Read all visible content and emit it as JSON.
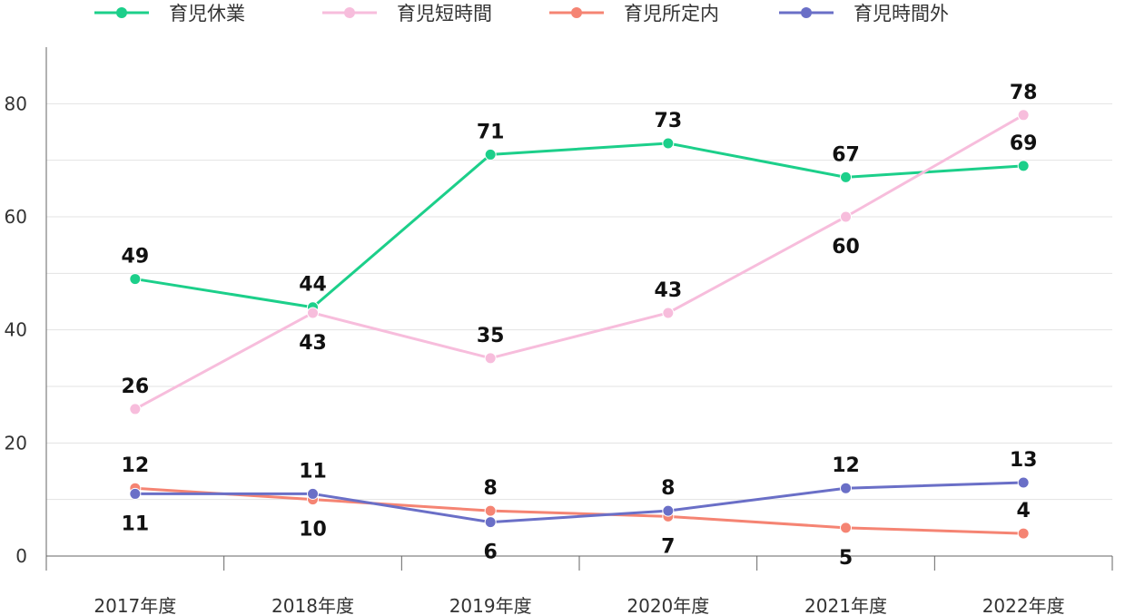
{
  "chart_data": {
    "type": "line",
    "categories": [
      "2017年度",
      "2018年度",
      "2019年度",
      "2020年度",
      "2021年度",
      "2022年度"
    ],
    "series": [
      {
        "name": "育児休業",
        "color": "#1ccf8a",
        "values": [
          49,
          44,
          71,
          73,
          67,
          69
        ],
        "label_pos": [
          "above",
          "above",
          "above",
          "above",
          "above",
          "above"
        ]
      },
      {
        "name": "育児短時間",
        "color": "#f7bddc",
        "values": [
          26,
          43,
          35,
          43,
          60,
          78
        ],
        "label_pos": [
          "above",
          "below",
          "above",
          "above",
          "below",
          "above"
        ]
      },
      {
        "name": "育児所定内",
        "color": "#f58473",
        "values": [
          12,
          10,
          8,
          7,
          5,
          4
        ],
        "label_pos": [
          "above",
          "below",
          "above",
          "below",
          "below",
          "above"
        ]
      },
      {
        "name": "育児時間外",
        "color": "#6a6fc7",
        "values": [
          11,
          11,
          6,
          8,
          12,
          13
        ],
        "label_pos": [
          "below",
          "above",
          "below",
          "above",
          "above",
          "above"
        ]
      }
    ],
    "y_ticks": [
      "0",
      "20",
      "40",
      "60",
      "80"
    ],
    "ylim": [
      0,
      90
    ],
    "grid": true,
    "legend_position": "top"
  }
}
